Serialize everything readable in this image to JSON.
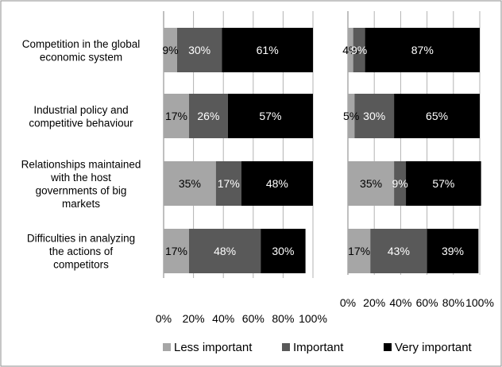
{
  "chart_data": [
    {
      "type": "bar",
      "orientation": "horizontal",
      "stacked": "percent",
      "categories": [
        "Competition in the global economic system",
        "Industrial policy and competitive behaviour",
        "Relationships maintained with the host governments of big markets",
        "Difficulties in analyzing the actions of competitors"
      ],
      "category_lines": [
        [
          "Competition in the global",
          "economic system"
        ],
        [
          "Industrial policy and",
          "competitive behaviour"
        ],
        [
          "Relationships maintained",
          "with the host",
          "governments of big",
          "markets"
        ],
        [
          "Difficulties in analyzing",
          "the actions of",
          "competitors"
        ]
      ],
      "series": [
        {
          "name": "Less important",
          "values": [
            9,
            17,
            35,
            17
          ],
          "labels": [
            "9%",
            "17%",
            "35%",
            "17%"
          ]
        },
        {
          "name": "Important",
          "values": [
            30,
            26,
            17,
            48
          ],
          "labels": [
            "30%",
            "26%",
            "17%",
            "48%"
          ]
        },
        {
          "name": "Very important",
          "values": [
            61,
            57,
            48,
            30
          ],
          "labels": [
            "61%",
            "57%",
            "48%",
            "30%"
          ]
        }
      ],
      "xlim": [
        0,
        100
      ],
      "x_ticks": [
        "0%",
        "20%",
        "40%",
        "60%",
        "80%",
        "100%"
      ]
    },
    {
      "type": "bar",
      "orientation": "horizontal",
      "stacked": "percent",
      "series": [
        {
          "name": "Less important",
          "values": [
            4,
            5,
            35,
            17
          ],
          "labels": [
            "4%",
            "5%",
            "35%",
            "17%"
          ]
        },
        {
          "name": "Important",
          "values": [
            9,
            30,
            9,
            43
          ],
          "labels": [
            "9%",
            "30%",
            "9%",
            "43%"
          ]
        },
        {
          "name": "Very important",
          "values": [
            87,
            65,
            57,
            39
          ],
          "labels": [
            "87%",
            "65%",
            "57%",
            "39%"
          ]
        }
      ],
      "xlim": [
        0,
        100
      ],
      "x_ticks": [
        "0%",
        "20%",
        "40%",
        "60%",
        "80%",
        "100%"
      ]
    }
  ],
  "legend": {
    "position": "bottom",
    "items": [
      {
        "name": "Less important",
        "color": "#a6a6a6"
      },
      {
        "name": "Important",
        "color": "#595959"
      },
      {
        "name": "Very important",
        "color": "#000000"
      }
    ]
  }
}
